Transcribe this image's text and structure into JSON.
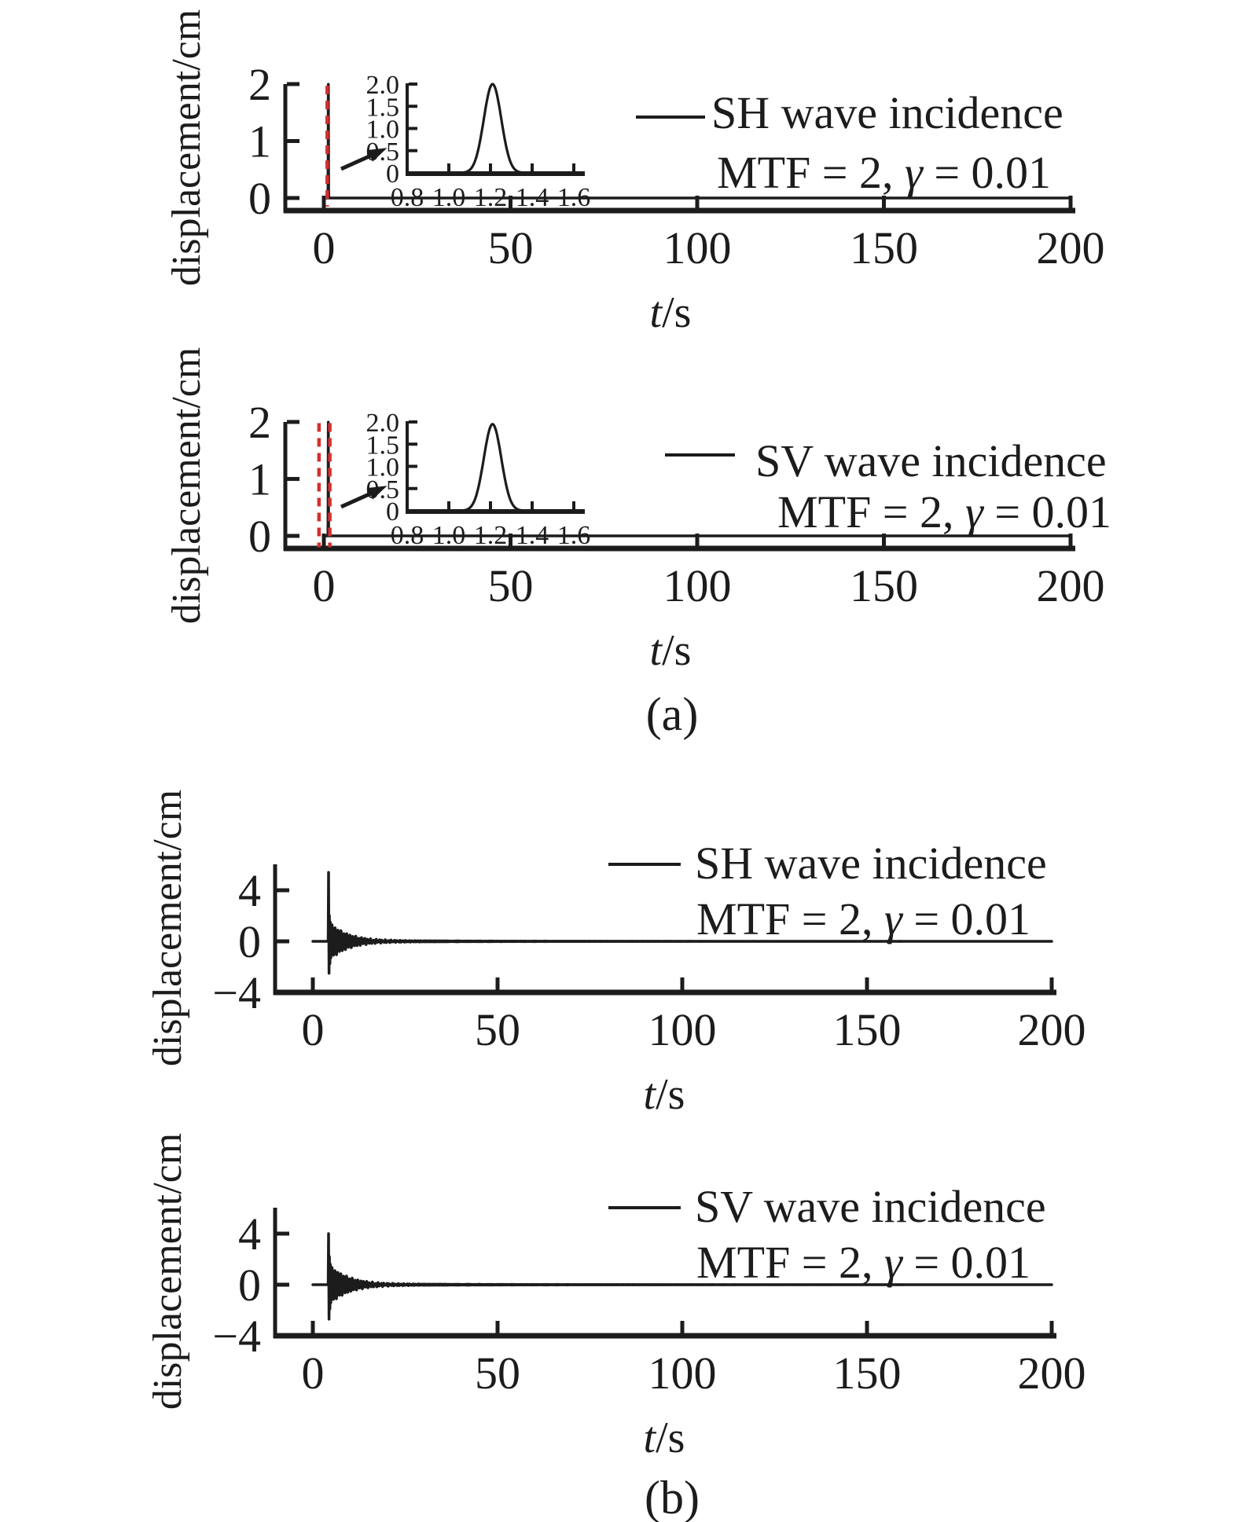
{
  "figure": {
    "panel_a": "(a)",
    "panel_b": "(b)",
    "color_line": "#1c1c1c",
    "color_marker": "#d3302f",
    "background": "#ffffff"
  },
  "chart_data": [
    {
      "id": "a-sh",
      "type": "line",
      "panel": "a",
      "legend_series": "SH wave incidence",
      "legend_params": "MTF = 2, γ = 0.01",
      "ylabel": "displacement/cm",
      "xlabel_italic": "t",
      "xlabel_rest": "/s",
      "xlim": [
        -10,
        201
      ],
      "ylim": [
        -0.25,
        2.0
      ],
      "x_ticks": [
        0,
        50,
        100,
        150,
        200
      ],
      "y_ticks": [
        0,
        1,
        2
      ],
      "grid": false,
      "legend_position": "upper-right",
      "series": [
        {
          "name": "SH wave incidence",
          "color": "#1c1c1c",
          "style": "solid",
          "shape": "pulse",
          "x_range": [
            0,
            200
          ],
          "baseline": 0,
          "pulse": {
            "center": 1.2,
            "sigma": 0.042,
            "amplitude": 2.0
          }
        }
      ],
      "markers": [
        {
          "type": "vline",
          "name": "incident-pulse-marker",
          "color": "#d3302f",
          "style": "dashed",
          "t": 0.9,
          "v_range": [
            -0.15,
            1.97
          ]
        }
      ],
      "inset": {
        "xlim": [
          0.8,
          1.645
        ],
        "ylim": [
          0,
          2.0
        ],
        "x_ticks": [
          0.8,
          1.0,
          1.2,
          1.4,
          1.6
        ],
        "y_ticks": [
          0,
          0.5,
          1.0,
          1.5,
          2.0
        ],
        "pulse": {
          "center": 1.21,
          "sigma": 0.042,
          "amplitude": 2.0
        }
      }
    },
    {
      "id": "a-sv",
      "type": "line",
      "panel": "a",
      "legend_series": "SV wave incidence",
      "legend_params": "MTF = 2, γ = 0.01",
      "ylabel": "displacement/cm",
      "xlabel_italic": "t",
      "xlabel_rest": "/s",
      "xlim": [
        -10,
        201
      ],
      "ylim": [
        -0.25,
        2.0
      ],
      "x_ticks": [
        0,
        50,
        100,
        150,
        200
      ],
      "y_ticks": [
        0,
        1,
        2
      ],
      "grid": false,
      "legend_position": "upper-right",
      "series": [
        {
          "name": "SV wave incidence",
          "color": "#1c1c1c",
          "style": "solid",
          "shape": "pulse",
          "x_range": [
            0,
            200
          ],
          "baseline": 0,
          "pulse": {
            "center": 1.2,
            "sigma": 0.042,
            "amplitude": 2.0
          }
        }
      ],
      "markers": [
        {
          "type": "vline",
          "name": "incident-pulse-marker",
          "color": "#d3302f",
          "style": "dashed",
          "t": -1.3,
          "v_range": [
            -0.2,
            1.98
          ]
        },
        {
          "type": "vline",
          "name": "incident-pulse-marker",
          "color": "#d3302f",
          "style": "dashed",
          "t": 1.6,
          "v_range": [
            -0.2,
            1.98
          ]
        }
      ],
      "inset": {
        "xlim": [
          0.8,
          1.645
        ],
        "ylim": [
          0,
          2.0
        ],
        "x_ticks": [
          0.8,
          1.0,
          1.2,
          1.4,
          1.6
        ],
        "y_ticks": [
          0,
          0.5,
          1.0,
          1.5,
          2.0
        ],
        "pulse": {
          "center": 1.21,
          "sigma": 0.042,
          "amplitude": 1.95
        }
      }
    },
    {
      "id": "b-sh",
      "type": "line",
      "panel": "b",
      "legend_series": "SH wave incidence",
      "legend_params": "MTF = 2, γ = 0.01",
      "ylabel": "displacement/cm",
      "xlabel_italic": "t",
      "xlabel_rest": "/s",
      "xlim": [
        -10,
        201
      ],
      "ylim": [
        -4,
        6.2
      ],
      "x_ticks": [
        0,
        50,
        100,
        150,
        200
      ],
      "y_ticks": [
        -4,
        0,
        4
      ],
      "grid": false,
      "legend_position": "upper-right",
      "series": [
        {
          "name": "SH wave incidence",
          "color": "#1c1c1c",
          "style": "solid",
          "shape": "burst",
          "x_range": [
            0,
            200
          ],
          "baseline": 0,
          "burst": {
            "onset": 4.15,
            "spike_points": [
              [
                4.15,
                0
              ],
              [
                4.25,
                5.4
              ],
              [
                4.38,
                -2.5
              ],
              [
                4.5,
                2.0
              ],
              [
                4.62,
                -1.75
              ],
              [
                4.74,
                1.5
              ],
              [
                4.87,
                -1.3
              ],
              [
                5.0,
                1.25
              ]
            ],
            "tail": {
              "amplitude": 1.3,
              "period": 0.8,
              "decay_tau": 5.0,
              "end": 36
            },
            "ripple": {
              "amplitude": 0.07,
              "period": 0.5,
              "decay_tau": 50,
              "end": 160
            }
          }
        }
      ],
      "markers": []
    },
    {
      "id": "b-sv",
      "type": "line",
      "panel": "b",
      "legend_series": "SV wave incidence",
      "legend_params": "MTF = 2, γ = 0.01",
      "ylabel": "displacement/cm",
      "xlabel_italic": "t",
      "xlabel_rest": "/s",
      "xlim": [
        -10,
        201
      ],
      "ylim": [
        -4,
        6.2
      ],
      "x_ticks": [
        0,
        50,
        100,
        150,
        200
      ],
      "y_ticks": [
        -4,
        0,
        4
      ],
      "grid": false,
      "legend_position": "upper-right",
      "series": [
        {
          "name": "SV wave incidence",
          "color": "#1c1c1c",
          "style": "solid",
          "shape": "burst",
          "x_range": [
            0,
            200
          ],
          "baseline": 0,
          "burst": {
            "onset": 4.15,
            "spike_points": [
              [
                4.15,
                0
              ],
              [
                4.25,
                4.0
              ],
              [
                4.38,
                -2.7
              ],
              [
                4.5,
                2.2
              ],
              [
                4.62,
                -1.9
              ],
              [
                4.74,
                1.6
              ],
              [
                4.87,
                -1.4
              ],
              [
                5.0,
                1.3
              ]
            ],
            "tail": {
              "amplitude": 1.35,
              "period": 0.78,
              "decay_tau": 5.2,
              "end": 36
            },
            "ripple": {
              "amplitude": 0.07,
              "period": 0.5,
              "decay_tau": 55,
              "end": 160
            }
          }
        }
      ],
      "markers": []
    }
  ]
}
